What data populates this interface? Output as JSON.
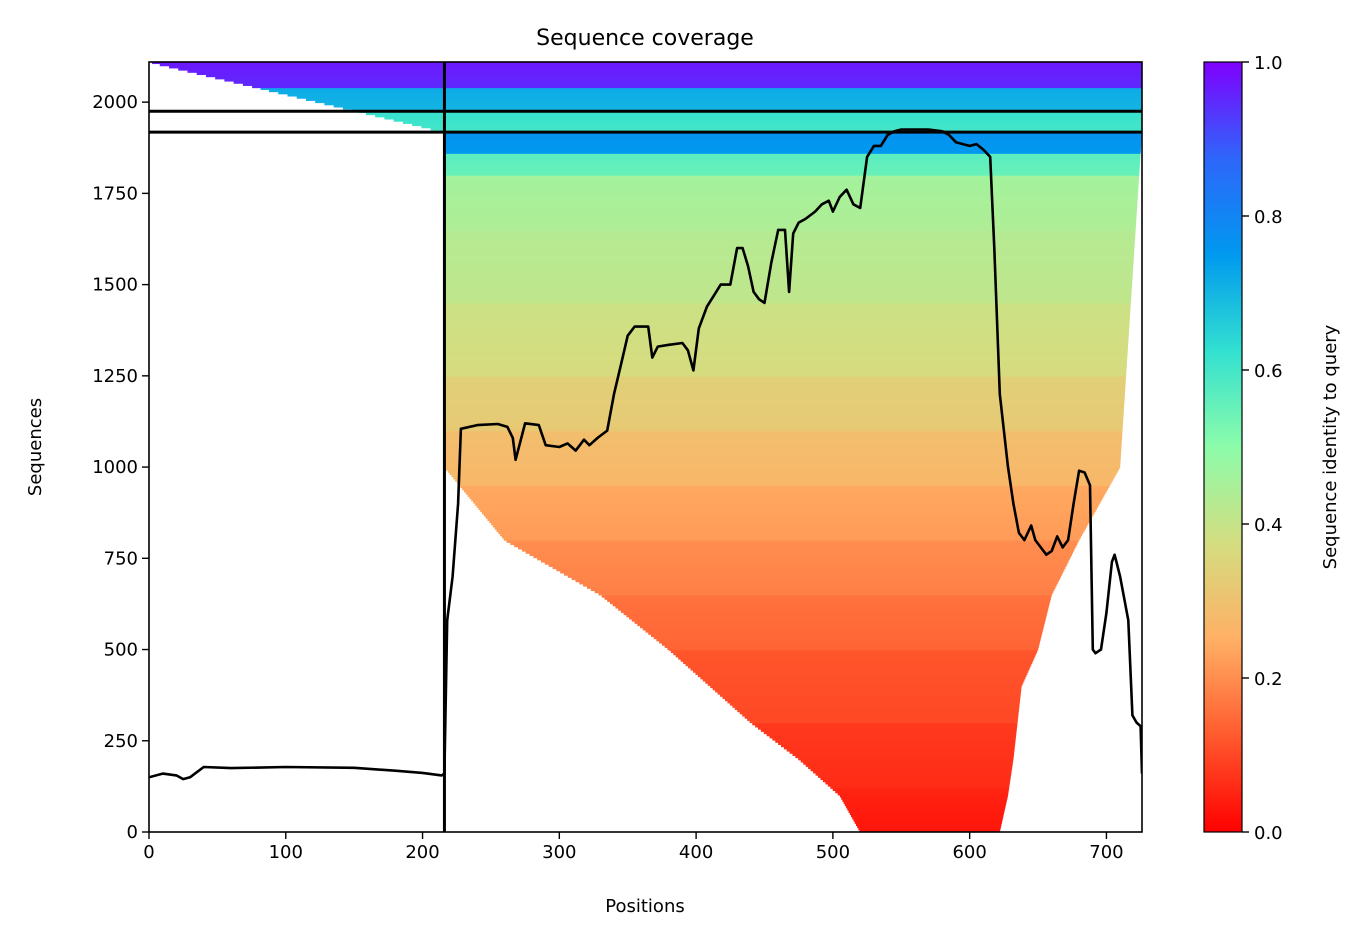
{
  "colors": {
    "colormap": [
      "#ff0000",
      "#ff5a2e",
      "#ffb065",
      "#d4dd80",
      "#8cfcaa",
      "#32e0d0",
      "#0099ef",
      "#2e66fa",
      "#8000ff"
    ],
    "coverage_line": "#000000",
    "separator_line": "#000000"
  },
  "chart_data": {
    "type": "heatmap",
    "title": "Sequence coverage",
    "xlabel": "Positions",
    "ylabel": "Sequences",
    "xlim": [
      0,
      726
    ],
    "ylim": [
      0,
      2110
    ],
    "xticks": [
      0,
      100,
      200,
      300,
      400,
      500,
      600,
      700
    ],
    "yticks": [
      0,
      250,
      500,
      750,
      1000,
      1250,
      1500,
      1750,
      2000
    ],
    "colorbar": {
      "label": "Sequence identity to query",
      "range": [
        0,
        1
      ],
      "ticks": [
        "0.0",
        "0.2",
        "0.4",
        "0.6",
        "0.8",
        "1.0"
      ],
      "colormap": "rainbow_r"
    },
    "chain_boundary_x": 216,
    "group_separators_y": [
      1918,
      1975
    ],
    "identity_bands": [
      {
        "y0": 0,
        "y1": 120,
        "identity": 0.03
      },
      {
        "y0": 120,
        "y1": 300,
        "identity": 0.06
      },
      {
        "y0": 300,
        "y1": 500,
        "identity": 0.1
      },
      {
        "y0": 500,
        "y1": 650,
        "identity": 0.14
      },
      {
        "y0": 650,
        "y1": 800,
        "identity": 0.18
      },
      {
        "y0": 800,
        "y1": 950,
        "identity": 0.22
      },
      {
        "y0": 950,
        "y1": 1100,
        "identity": 0.27
      },
      {
        "y0": 1100,
        "y1": 1250,
        "identity": 0.32
      },
      {
        "y0": 1250,
        "y1": 1450,
        "identity": 0.37
      },
      {
        "y0": 1450,
        "y1": 1650,
        "identity": 0.41
      },
      {
        "y0": 1650,
        "y1": 1800,
        "identity": 0.44
      },
      {
        "y0": 1800,
        "y1": 1860,
        "identity": 0.55
      },
      {
        "y0": 1860,
        "y1": 1918,
        "identity": 0.75
      },
      {
        "y0": 1918,
        "y1": 1975,
        "identity": 0.6
      },
      {
        "y0": 1975,
        "y1": 2040,
        "identity": 0.7
      },
      {
        "y0": 2040,
        "y1": 2110,
        "identity": 0.95
      }
    ],
    "coverage_region_envelope": [
      {
        "y": 0,
        "x0": 520,
        "x1": 622
      },
      {
        "y": 100,
        "x0": 505,
        "x1": 628
      },
      {
        "y": 200,
        "x0": 475,
        "x1": 632
      },
      {
        "y": 300,
        "x0": 440,
        "x1": 635
      },
      {
        "y": 400,
        "x0": 410,
        "x1": 638
      },
      {
        "y": 500,
        "x0": 380,
        "x1": 650
      },
      {
        "y": 650,
        "x0": 330,
        "x1": 660
      },
      {
        "y": 800,
        "x0": 260,
        "x1": 680
      },
      {
        "y": 1000,
        "x0": 216,
        "x1": 710
      },
      {
        "y": 1918,
        "x0": 216,
        "x1": 726
      },
      {
        "y": 2110,
        "x0": 0,
        "x1": 726
      }
    ],
    "coverage_line": {
      "x": [
        0,
        10,
        20,
        25,
        30,
        40,
        60,
        100,
        150,
        180,
        200,
        214,
        216,
        218,
        222,
        226,
        228,
        240,
        255,
        262,
        266,
        268,
        275,
        285,
        290,
        300,
        306,
        312,
        318,
        322,
        328,
        335,
        340,
        345,
        350,
        355,
        365,
        368,
        372,
        380,
        390,
        394,
        398,
        402,
        408,
        413,
        418,
        425,
        430,
        434,
        438,
        442,
        446,
        450,
        455,
        460,
        465,
        468,
        471,
        475,
        480,
        487,
        492,
        497,
        500,
        505,
        510,
        515,
        520,
        525,
        530,
        535,
        540,
        545,
        550,
        560,
        570,
        580,
        585,
        590,
        595,
        600,
        605,
        610,
        615,
        618,
        622,
        628,
        632,
        636,
        640,
        645,
        648,
        652,
        656,
        660,
        664,
        668,
        672,
        676,
        680,
        684,
        688,
        690,
        692,
        696,
        700,
        704,
        706,
        710,
        713,
        716,
        719,
        722,
        725,
        726
      ],
      "y": [
        150,
        160,
        155,
        145,
        150,
        178,
        175,
        178,
        176,
        168,
        162,
        155,
        160,
        580,
        700,
        900,
        1105,
        1115,
        1118,
        1110,
        1080,
        1020,
        1120,
        1115,
        1060,
        1055,
        1065,
        1045,
        1075,
        1060,
        1080,
        1100,
        1200,
        1280,
        1360,
        1385,
        1385,
        1300,
        1330,
        1335,
        1340,
        1320,
        1265,
        1380,
        1440,
        1470,
        1500,
        1500,
        1600,
        1600,
        1550,
        1480,
        1460,
        1450,
        1560,
        1650,
        1650,
        1480,
        1640,
        1670,
        1680,
        1700,
        1720,
        1730,
        1700,
        1740,
        1760,
        1720,
        1710,
        1850,
        1880,
        1880,
        1910,
        1920,
        1925,
        1925,
        1925,
        1920,
        1910,
        1890,
        1885,
        1880,
        1885,
        1870,
        1850,
        1600,
        1200,
        1000,
        900,
        820,
        800,
        840,
        800,
        780,
        760,
        770,
        810,
        780,
        800,
        900,
        990,
        985,
        950,
        500,
        490,
        500,
        600,
        740,
        760,
        700,
        640,
        580,
        320,
        300,
        290,
        160
      ]
    }
  }
}
